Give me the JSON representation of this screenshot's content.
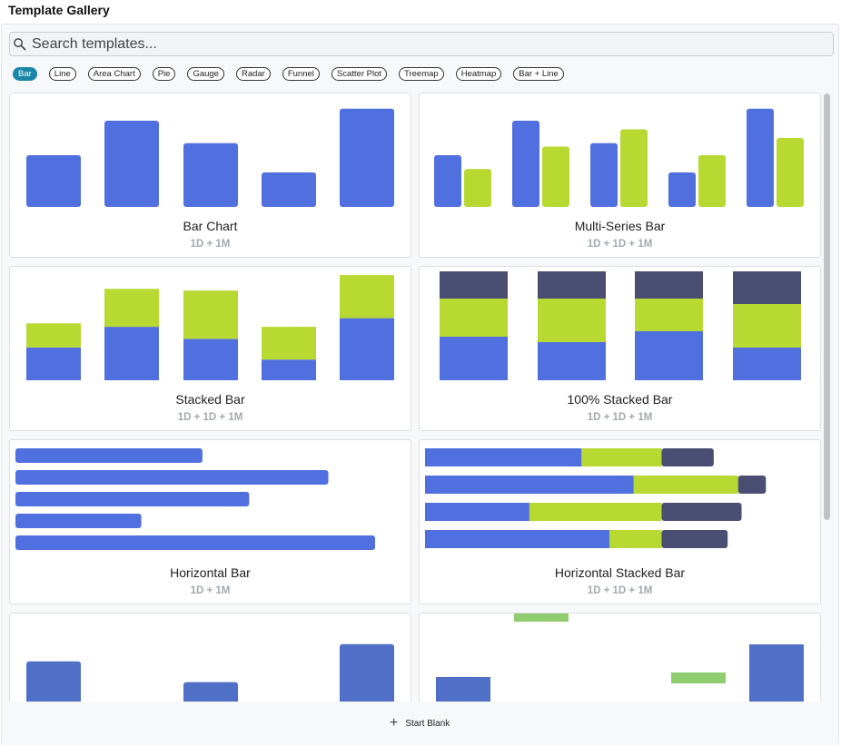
{
  "header": {
    "title": "Template Gallery"
  },
  "search": {
    "placeholder": "Search templates..."
  },
  "filters": [
    "Bar",
    "Line",
    "Area Chart",
    "Pie",
    "Gauge",
    "Radar",
    "Funnel",
    "Scatter Plot",
    "Treemap",
    "Heatmap",
    "Bar + Line"
  ],
  "active_filter": "Bar",
  "colors": {
    "blue": "#5070e0",
    "green": "#b8d832",
    "slate": "#4a4e72",
    "red": "#e05050",
    "light_green": "#90cc70",
    "accent": "#1a86a8"
  },
  "cards": [
    {
      "name": "Bar Chart",
      "meta": "1D + 1M",
      "kind": "bar",
      "values": [
        30,
        50,
        37,
        20,
        57
      ]
    },
    {
      "name": "Multi-Series Bar",
      "meta": "1D + 1D + 1M",
      "kind": "multi",
      "values": [
        [
          30,
          22
        ],
        [
          50,
          35
        ],
        [
          37,
          45
        ],
        [
          20,
          30
        ],
        [
          57,
          40
        ]
      ]
    },
    {
      "name": "Stacked Bar",
      "meta": "1D + 1D + 1M",
      "kind": "stacked",
      "values": [
        [
          19,
          14
        ],
        [
          31,
          22
        ],
        [
          24,
          28
        ],
        [
          12,
          19
        ],
        [
          36,
          25
        ]
      ]
    },
    {
      "name": "100% Stacked Bar",
      "meta": "1D + 1D + 1M",
      "kind": "stacked100",
      "values": [
        [
          40,
          35,
          25
        ],
        [
          35,
          40,
          25
        ],
        [
          45,
          30,
          25
        ],
        [
          30,
          40,
          30
        ]
      ]
    },
    {
      "name": "Horizontal Bar",
      "meta": "1D + 1M",
      "kind": "hbar",
      "values": [
        52,
        87,
        65,
        35,
        100
      ]
    },
    {
      "name": "Horizontal Stacked Bar",
      "meta": "1D + 1D + 1M",
      "kind": "hstacked",
      "values": [
        [
          45,
          23,
          15
        ],
        [
          60,
          30,
          8
        ],
        [
          30,
          38,
          23
        ],
        [
          53,
          15,
          19
        ]
      ]
    },
    {
      "name": "",
      "meta": "",
      "kind": "bar_neg",
      "values": [
        38,
        -1,
        26,
        -1,
        48
      ]
    },
    {
      "name": "",
      "meta": "",
      "kind": "waterfall",
      "values": [
        [
          0,
          30
        ],
        [
          44,
          58
        ],
        [
          0,
          0
        ],
        [
          10,
          20
        ],
        [
          0,
          48
        ]
      ]
    }
  ],
  "footer": {
    "start_blank": "Start Blank"
  }
}
